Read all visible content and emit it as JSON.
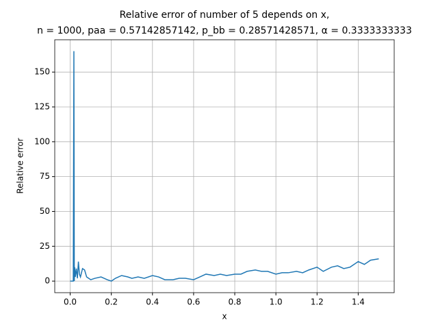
{
  "chart_data": {
    "type": "line",
    "title": "Relative error of number of 5 depends on x,",
    "subtitle": "n = 1000, paa = 0.57142857142, p_bb = 0.28571428571, α = 0.3333333333",
    "x_label": "x",
    "y_label": "Relative error",
    "grid": true,
    "xlim": [
      -0.075,
      1.575
    ],
    "ylim": [
      -8.3,
      173.2
    ],
    "xticks": [
      {
        "value": 0,
        "label": "0.0"
      },
      0.2,
      0.4,
      0.6,
      0.8,
      {
        "value": 1,
        "label": "1.0"
      },
      1.2,
      1.4
    ],
    "yticks": [
      0,
      25,
      50,
      75,
      100,
      125,
      150
    ],
    "series": [
      {
        "color": "#1f77b4",
        "x": [
          0,
          0.015,
          0.018,
          0.02,
          0.022,
          0.025,
          0.03,
          0.035,
          0.04,
          0.045,
          0.05,
          0.06,
          0.07,
          0.08,
          0.1,
          0.12,
          0.15,
          0.18,
          0.2,
          0.22,
          0.25,
          0.28,
          0.3,
          0.33,
          0.36,
          0.4,
          0.43,
          0.46,
          0.5,
          0.53,
          0.56,
          0.6,
          0.63,
          0.66,
          0.7,
          0.73,
          0.76,
          0.8,
          0.83,
          0.86,
          0.9,
          0.93,
          0.96,
          1.0,
          1.03,
          1.06,
          1.1,
          1.13,
          1.16,
          1.2,
          1.23,
          1.27,
          1.3,
          1.33,
          1.36,
          1.4,
          1.43,
          1.46,
          1.5
        ],
        "values": [
          0,
          0,
          165,
          0,
          10,
          3,
          9,
          2,
          14,
          5,
          3,
          9,
          8,
          3,
          1,
          2,
          3,
          1,
          0,
          2,
          4,
          3,
          2,
          3,
          2,
          4,
          3,
          1,
          1,
          2,
          2,
          1,
          3,
          5,
          4,
          5,
          4,
          5,
          5,
          7,
          8,
          7,
          7,
          5,
          6,
          6,
          7,
          6,
          8,
          10,
          7,
          10,
          11,
          9,
          10,
          14,
          12,
          15,
          16
        ]
      }
    ]
  }
}
